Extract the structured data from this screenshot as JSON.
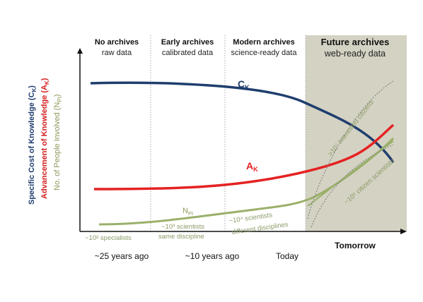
{
  "eras": [
    {
      "title": "No archives",
      "subtitle": "raw data"
    },
    {
      "title": "Early archives",
      "subtitle": "calibrated data"
    },
    {
      "title": "Modern archives",
      "subtitle": "science-ready data"
    },
    {
      "title": "Future archives",
      "subtitle": "web-ready data"
    }
  ],
  "axis_labels": [
    {
      "main": "Specific Cost of Knowledge (C",
      "sub": "K",
      "end": ")"
    },
    {
      "main": "Advancement of Knowledge (A",
      "sub": "K",
      "end": ")"
    },
    {
      "main": "No. of People Involved (N",
      "sub": "PI",
      "end": ")"
    }
  ],
  "curve_labels": [
    {
      "main": "C",
      "sub": "K"
    },
    {
      "main": "A",
      "sub": "K"
    },
    {
      "main": "N",
      "sub": "PI"
    }
  ],
  "annotations": {
    "specialists": "~10² specialists",
    "scientists_same": [
      "~10³ scientists",
      "same discipline"
    ],
    "scientists_different": [
      "~10⁴ scientists",
      "different disciplines"
    ],
    "interested_citizens": ">10⁷ interested citizens",
    "citizen_scientists": "~10⁵ citizen scientists"
  },
  "time_labels": [
    "~25 years ago",
    "~10 years ago",
    "Today",
    "Tomorrow"
  ]
}
